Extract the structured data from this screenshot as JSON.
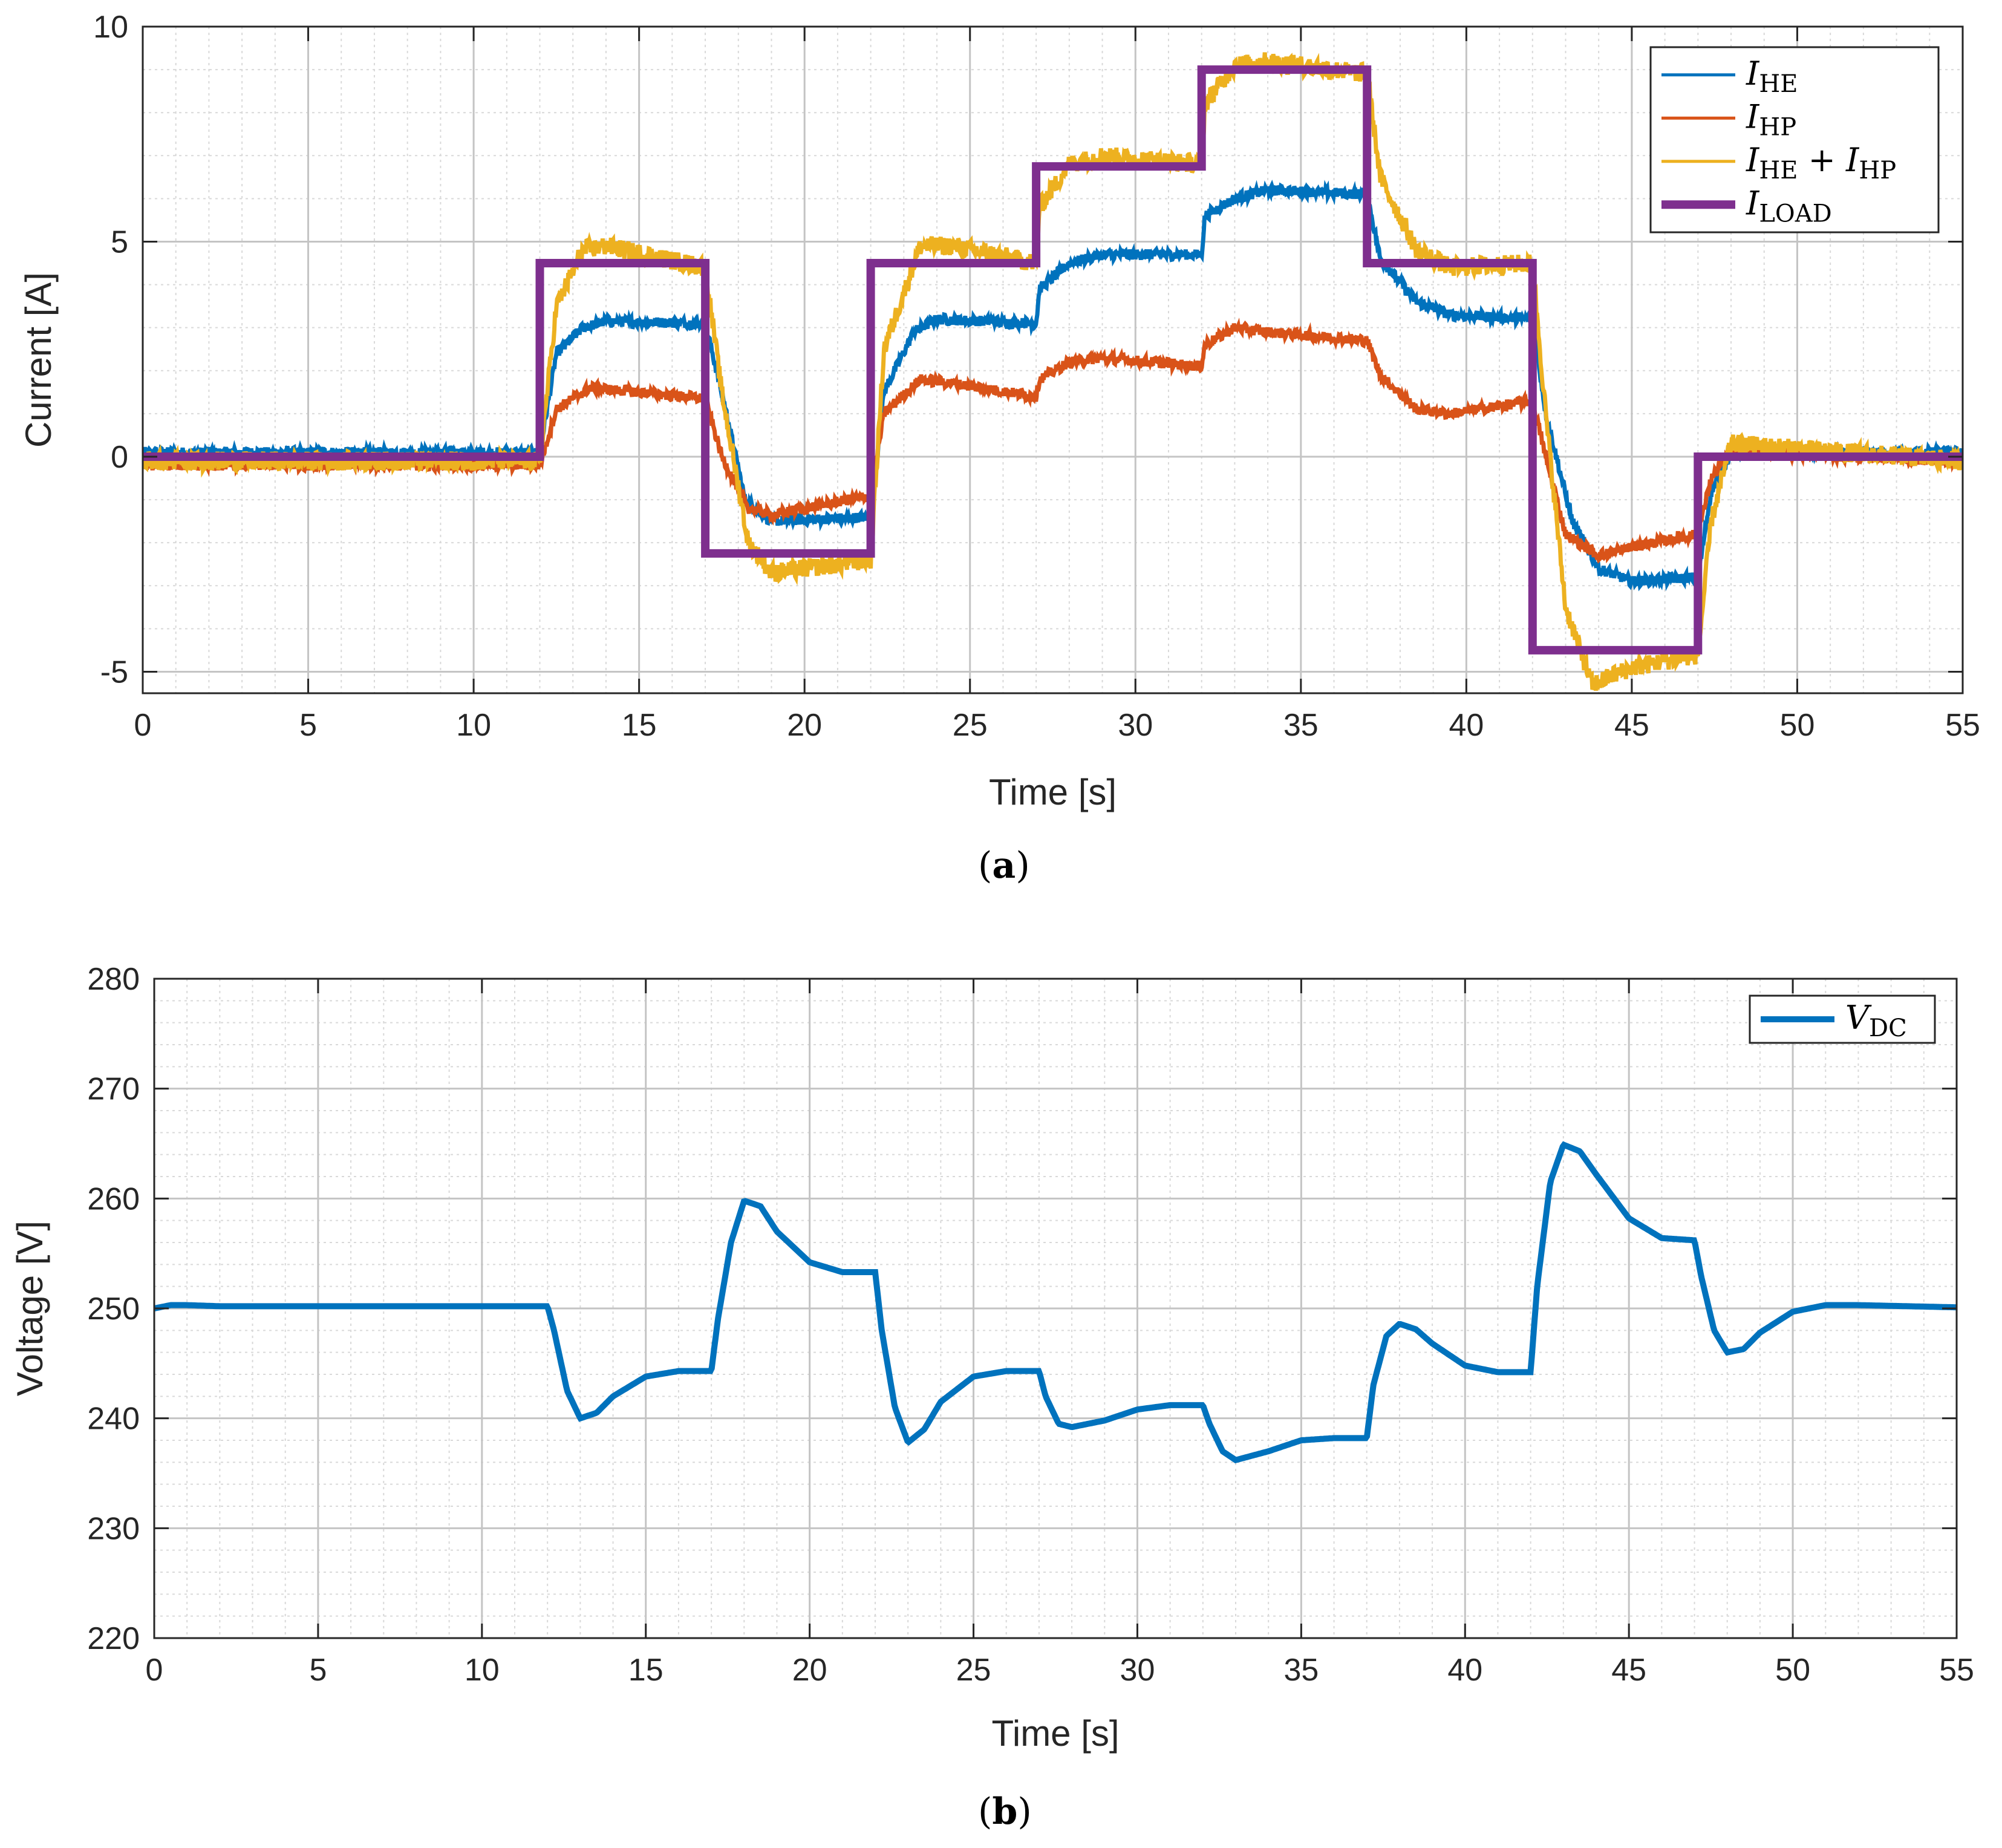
{
  "chart_data": [
    {
      "id": "a",
      "type": "line",
      "caption_letter": "a",
      "xlabel": "Time [s]",
      "ylabel": "Current [A]",
      "xlim": [
        0,
        55
      ],
      "ylim": [
        -5.5,
        10
      ],
      "xticks": [
        0,
        5,
        10,
        15,
        20,
        25,
        30,
        35,
        40,
        45,
        50,
        55
      ],
      "yticks": [
        -5,
        0,
        5,
        10
      ],
      "grid": "major+minor",
      "legend_position": "top-right",
      "series": [
        {
          "name": "I_HE",
          "legend_label": "I",
          "legend_sub": "HE",
          "color": "#0072BD",
          "noise": 0.12,
          "points": [
            [
              0,
              0.1
            ],
            [
              12,
              0.1
            ],
            [
              12.5,
              2.4
            ],
            [
              13.3,
              3.0
            ],
            [
              14,
              3.15
            ],
            [
              17,
              3.1
            ],
            [
              17.5,
              1.5
            ],
            [
              18.2,
              -1.0
            ],
            [
              19,
              -1.5
            ],
            [
              22,
              -1.4
            ],
            [
              22.4,
              1.5
            ],
            [
              23.3,
              2.9
            ],
            [
              24,
              3.2
            ],
            [
              27,
              3.1
            ],
            [
              27.1,
              3.9
            ],
            [
              28,
              4.5
            ],
            [
              29,
              4.7
            ],
            [
              32,
              4.7
            ],
            [
              32.1,
              5.6
            ],
            [
              33,
              6.0
            ],
            [
              34,
              6.2
            ],
            [
              37,
              6.1
            ],
            [
              37.4,
              4.6
            ],
            [
              38.5,
              3.6
            ],
            [
              39.5,
              3.3
            ],
            [
              42,
              3.2
            ],
            [
              42.4,
              1.0
            ],
            [
              43.2,
              -1.5
            ],
            [
              44,
              -2.6
            ],
            [
              45,
              -2.9
            ],
            [
              47,
              -2.8
            ],
            [
              47.4,
              -0.8
            ],
            [
              48,
              0.1
            ],
            [
              55,
              0.1
            ]
          ]
        },
        {
          "name": "I_HP",
          "legend_label": "I",
          "legend_sub": "HP",
          "color": "#D95319",
          "noise": 0.12,
          "points": [
            [
              0,
              -0.2
            ],
            [
              12,
              -0.2
            ],
            [
              12.5,
              1.1
            ],
            [
              13.5,
              1.6
            ],
            [
              15,
              1.5
            ],
            [
              17,
              1.35
            ],
            [
              17.5,
              0.0
            ],
            [
              18.3,
              -1.2
            ],
            [
              19,
              -1.35
            ],
            [
              22,
              -0.9
            ],
            [
              22.4,
              1.0
            ],
            [
              23.5,
              1.8
            ],
            [
              24.5,
              1.7
            ],
            [
              27,
              1.4
            ],
            [
              27.1,
              1.8
            ],
            [
              28,
              2.2
            ],
            [
              29,
              2.3
            ],
            [
              32,
              2.1
            ],
            [
              32.1,
              2.6
            ],
            [
              33,
              3.0
            ],
            [
              34,
              2.9
            ],
            [
              37,
              2.7
            ],
            [
              37.4,
              1.9
            ],
            [
              38.5,
              1.1
            ],
            [
              39.5,
              1.0
            ],
            [
              42,
              1.3
            ],
            [
              42.4,
              0.0
            ],
            [
              43,
              -1.8
            ],
            [
              44,
              -2.3
            ],
            [
              45,
              -2.1
            ],
            [
              47,
              -1.8
            ],
            [
              47.4,
              -0.5
            ],
            [
              48,
              0.1
            ],
            [
              55,
              -0.1
            ]
          ]
        },
        {
          "name": "I_HE + I_HP",
          "legend_label": "I",
          "legend_sub": "HE",
          "legend_plus": " + I",
          "legend_sub2": "HP",
          "color": "#EDB120",
          "noise": 0.22,
          "points": [
            [
              0,
              -0.1
            ],
            [
              12,
              -0.1
            ],
            [
              12.5,
              3.5
            ],
            [
              13.3,
              4.8
            ],
            [
              14,
              4.9
            ],
            [
              17,
              4.4
            ],
            [
              17.5,
              1.5
            ],
            [
              18.3,
              -2.0
            ],
            [
              19,
              -2.7
            ],
            [
              22,
              -2.4
            ],
            [
              22.4,
              2.5
            ],
            [
              23.5,
              4.9
            ],
            [
              24.5,
              4.9
            ],
            [
              27,
              4.5
            ],
            [
              27.1,
              5.8
            ],
            [
              28,
              6.8
            ],
            [
              29,
              7.0
            ],
            [
              32,
              6.8
            ],
            [
              32.1,
              8.2
            ],
            [
              33,
              9.1
            ],
            [
              34,
              9.2
            ],
            [
              37,
              8.9
            ],
            [
              37.4,
              6.5
            ],
            [
              38.5,
              4.8
            ],
            [
              39.5,
              4.4
            ],
            [
              42,
              4.5
            ],
            [
              42.4,
              1.0
            ],
            [
              43,
              -3.5
            ],
            [
              43.8,
              -5.3
            ],
            [
              45,
              -4.9
            ],
            [
              47,
              -4.6
            ],
            [
              47.4,
              -1.5
            ],
            [
              48,
              0.3
            ],
            [
              55,
              -0.1
            ]
          ]
        },
        {
          "name": "I_LOAD",
          "legend_label": "I",
          "legend_sub": "LOAD",
          "color": "#7E2F8E",
          "noise": 0,
          "step": true,
          "points": [
            [
              0,
              0
            ],
            [
              12,
              0
            ],
            [
              12,
              4.5
            ],
            [
              17,
              4.5
            ],
            [
              17,
              -2.25
            ],
            [
              22,
              -2.25
            ],
            [
              22,
              4.5
            ],
            [
              27,
              4.5
            ],
            [
              27,
              6.75
            ],
            [
              32,
              6.75
            ],
            [
              32,
              9.0
            ],
            [
              37,
              9.0
            ],
            [
              37,
              4.5
            ],
            [
              42,
              4.5
            ],
            [
              42,
              -4.5
            ],
            [
              47,
              -4.5
            ],
            [
              47,
              0
            ],
            [
              55,
              0
            ]
          ]
        }
      ]
    },
    {
      "id": "b",
      "type": "line",
      "caption_letter": "b",
      "xlabel": "Time [s]",
      "ylabel": "Voltage [V]",
      "xlim": [
        0,
        55
      ],
      "ylim": [
        220,
        280
      ],
      "xticks": [
        0,
        5,
        10,
        15,
        20,
        25,
        30,
        35,
        40,
        45,
        50,
        55
      ],
      "yticks": [
        220,
        230,
        240,
        250,
        260,
        270,
        280
      ],
      "grid": "major+minor",
      "legend_position": "top-right",
      "series": [
        {
          "name": "V_DC",
          "legend_label": "V",
          "legend_sub": "DC",
          "color": "#0072BD",
          "noise": 0,
          "points": [
            [
              0,
              250
            ],
            [
              0.5,
              250.3
            ],
            [
              1,
              250.3
            ],
            [
              2,
              250.2
            ],
            [
              12,
              250.2
            ],
            [
              12.2,
              248
            ],
            [
              12.6,
              242.5
            ],
            [
              13,
              240
            ],
            [
              13.5,
              240.5
            ],
            [
              14,
              242
            ],
            [
              15,
              243.8
            ],
            [
              16,
              244.3
            ],
            [
              17,
              244.3
            ],
            [
              17.2,
              249
            ],
            [
              17.6,
              256
            ],
            [
              18,
              259.8
            ],
            [
              18.5,
              259.3
            ],
            [
              19,
              257
            ],
            [
              20,
              254.2
            ],
            [
              21,
              253.3
            ],
            [
              22,
              253.3
            ],
            [
              22.2,
              248
            ],
            [
              22.6,
              241
            ],
            [
              23,
              237.8
            ],
            [
              23.5,
              239
            ],
            [
              24,
              241.5
            ],
            [
              25,
              243.8
            ],
            [
              26,
              244.3
            ],
            [
              27,
              244.3
            ],
            [
              27.2,
              242
            ],
            [
              27.6,
              239.5
            ],
            [
              28,
              239.2
            ],
            [
              29,
              239.8
            ],
            [
              30,
              240.8
            ],
            [
              31,
              241.2
            ],
            [
              32,
              241.2
            ],
            [
              32.2,
              239.5
            ],
            [
              32.6,
              237
            ],
            [
              33,
              236.2
            ],
            [
              34,
              237
            ],
            [
              35,
              238
            ],
            [
              36,
              238.2
            ],
            [
              37,
              238.2
            ],
            [
              37.2,
              243
            ],
            [
              37.6,
              247.5
            ],
            [
              38,
              248.6
            ],
            [
              38.5,
              248.1
            ],
            [
              39,
              246.8
            ],
            [
              40,
              244.8
            ],
            [
              41,
              244.2
            ],
            [
              42,
              244.2
            ],
            [
              42.2,
              252
            ],
            [
              42.6,
              261.5
            ],
            [
              43,
              264.9
            ],
            [
              43.5,
              264.3
            ],
            [
              44,
              262.2
            ],
            [
              45,
              258.2
            ],
            [
              46,
              256.4
            ],
            [
              47,
              256.2
            ],
            [
              47.2,
              253
            ],
            [
              47.6,
              248
            ],
            [
              48,
              246
            ],
            [
              48.5,
              246.3
            ],
            [
              49,
              247.8
            ],
            [
              50,
              249.7
            ],
            [
              51,
              250.3
            ],
            [
              52,
              250.3
            ],
            [
              55,
              250.1
            ]
          ]
        }
      ]
    }
  ]
}
